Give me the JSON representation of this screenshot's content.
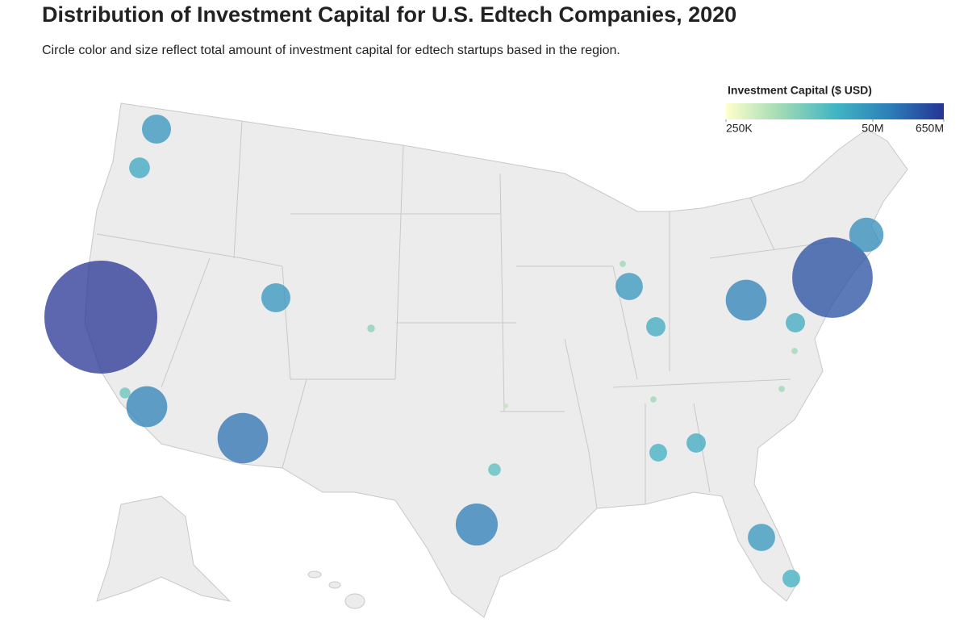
{
  "title": "Distribution of Investment Capital for U.S. Edtech Companies, 2020",
  "subtitle": "Circle color and size reflect total amount of investment capital for edtech startups based in the region.",
  "legend": {
    "title": "Investment Capital ($ USD)",
    "ticks": [
      {
        "value": 250000,
        "label": "250K"
      },
      {
        "value": 50000000,
        "label": "50M"
      },
      {
        "value": 650000000,
        "label": "650M"
      }
    ]
  },
  "colorscale": [
    "#ffffcc",
    "#a1dab4",
    "#41b6c4",
    "#2c7fb8",
    "#253494"
  ],
  "bubbles": {
    "values": [
      650000000,
      330000000,
      60000000,
      85000000,
      130000000,
      90000000,
      85000000,
      43000000,
      22000000,
      43000000,
      38000000,
      19000000,
      19000000,
      38000000,
      16000000,
      19000000,
      16000000,
      8000000,
      3000000,
      1000000,
      2000000,
      2000000,
      2000000,
      6000000,
      2000000
    ]
  }
}
